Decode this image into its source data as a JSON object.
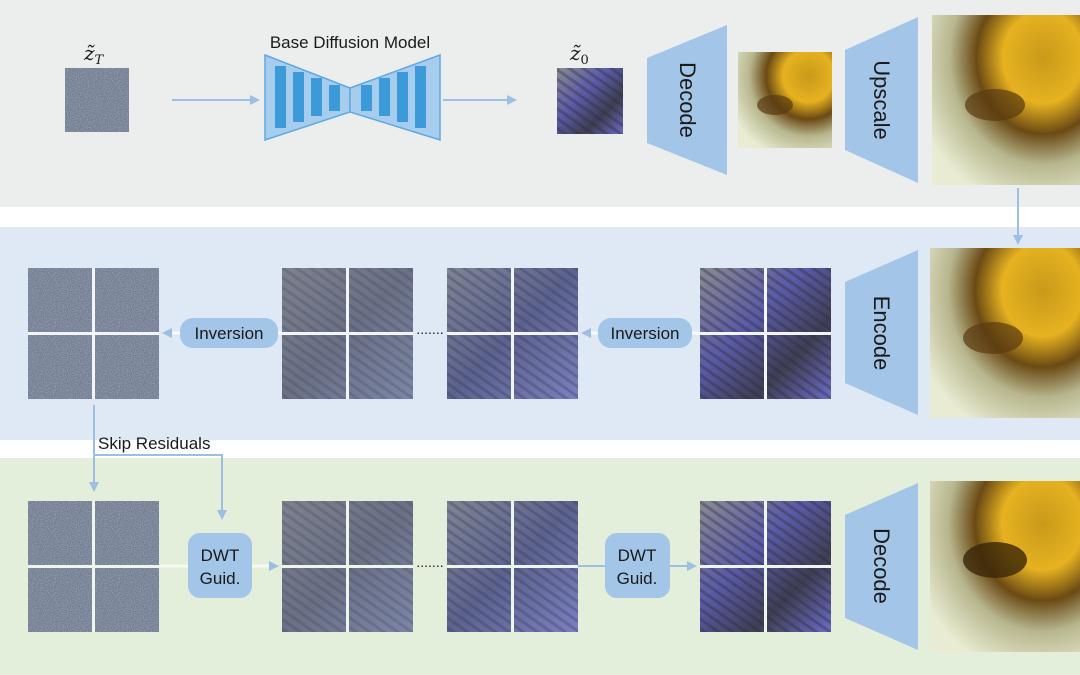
{
  "colors": {
    "top_band": "#eceeee",
    "middle_band": "#dfe9f5",
    "bottom_band": "#e3eedb",
    "block": "#a3c5e8",
    "unet_block": "#3d9ad8",
    "arrow": "#9dbfe3"
  },
  "top": {
    "noise_label": "z̃_T",
    "noise_label_base": "z̃",
    "noise_label_sub": "T",
    "model_label": "Base Diffusion Model",
    "latent_label_base": "z̃",
    "latent_label_sub": "0",
    "decode_label": "Decode",
    "upscale_label": "Upscale"
  },
  "middle": {
    "inversion_left": "Inversion",
    "inversion_right": "Inversion",
    "encode_label": "Encode",
    "ellipsis": "......."
  },
  "bottom": {
    "skip_residuals": "Skip Residuals",
    "dwt_left_line1": "DWT",
    "dwt_left_line2": "Guid.",
    "dwt_right_line1": "DWT",
    "dwt_right_line2": "Guid.",
    "decode_label": "Decode",
    "ellipsis": "......."
  }
}
